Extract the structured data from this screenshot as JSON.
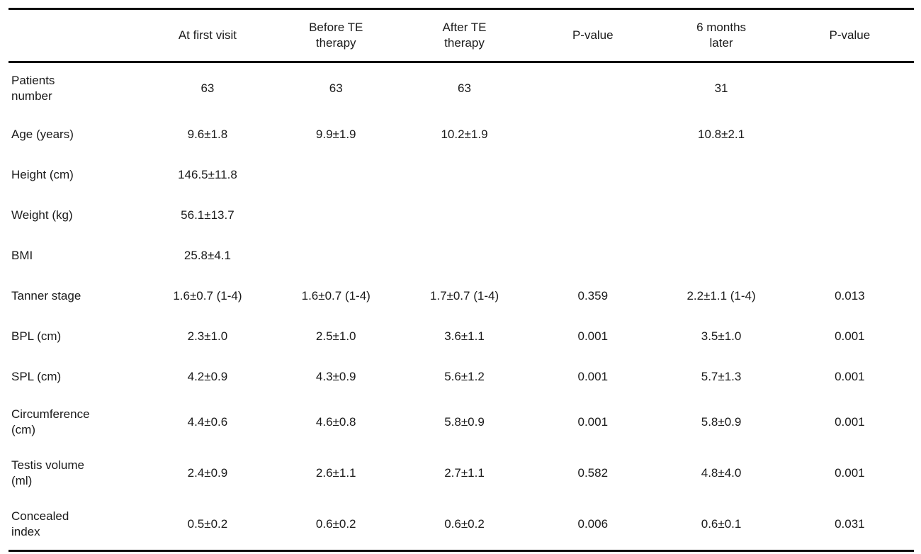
{
  "page": {
    "background": "#ffffff",
    "text_color": "#1a1a1a",
    "rule_color": "#111111"
  },
  "table": {
    "header": {
      "row_label": "",
      "columns": [
        "At first visit",
        "Before TE\ntherapy",
        "After TE\ntherapy",
        "P-value",
        "6 months\nlater",
        "P-value"
      ]
    },
    "rows": [
      {
        "label": "Patients\nnumber",
        "values": [
          "63",
          "63",
          "63",
          "",
          "31",
          ""
        ]
      },
      {
        "label": "Age (years)",
        "values": [
          "9.6±1.8",
          "9.9±1.9",
          "10.2±1.9",
          "",
          "10.8±2.1",
          ""
        ]
      },
      {
        "label": "Height (cm)",
        "values": [
          "146.5±11.8",
          "",
          "",
          "",
          "",
          ""
        ]
      },
      {
        "label": "Weight (kg)",
        "values": [
          "56.1±13.7",
          "",
          "",
          "",
          "",
          ""
        ]
      },
      {
        "label": "BMI",
        "values": [
          "25.8±4.1",
          "",
          "",
          "",
          "",
          ""
        ]
      },
      {
        "label": "Tanner stage",
        "values": [
          "1.6±0.7 (1-4)",
          "1.6±0.7 (1-4)",
          "1.7±0.7 (1-4)",
          "0.359",
          "2.2±1.1 (1-4)",
          "0.013"
        ]
      },
      {
        "label": "BPL (cm)",
        "values": [
          "2.3±1.0",
          "2.5±1.0",
          "3.6±1.1",
          "0.001",
          "3.5±1.0",
          "0.001"
        ]
      },
      {
        "label": "SPL (cm)",
        "values": [
          "4.2±0.9",
          "4.3±0.9",
          "5.6±1.2",
          "0.001",
          "5.7±1.3",
          "0.001"
        ]
      },
      {
        "label": "Circumference\n(cm)",
        "values": [
          "4.4±0.6",
          "4.6±0.8",
          "5.8±0.9",
          "0.001",
          "5.8±0.9",
          "0.001"
        ]
      },
      {
        "label": "Testis volume\n(ml)",
        "values": [
          "2.4±0.9",
          "2.6±1.1",
          "2.7±1.1",
          "0.582",
          "4.8±4.0",
          "0.001"
        ]
      },
      {
        "label": "Concealed\nindex",
        "values": [
          "0.5±0.2",
          "0.6±0.2",
          "0.6±0.2",
          "0.006",
          "0.6±0.1",
          "0.031"
        ]
      }
    ]
  }
}
